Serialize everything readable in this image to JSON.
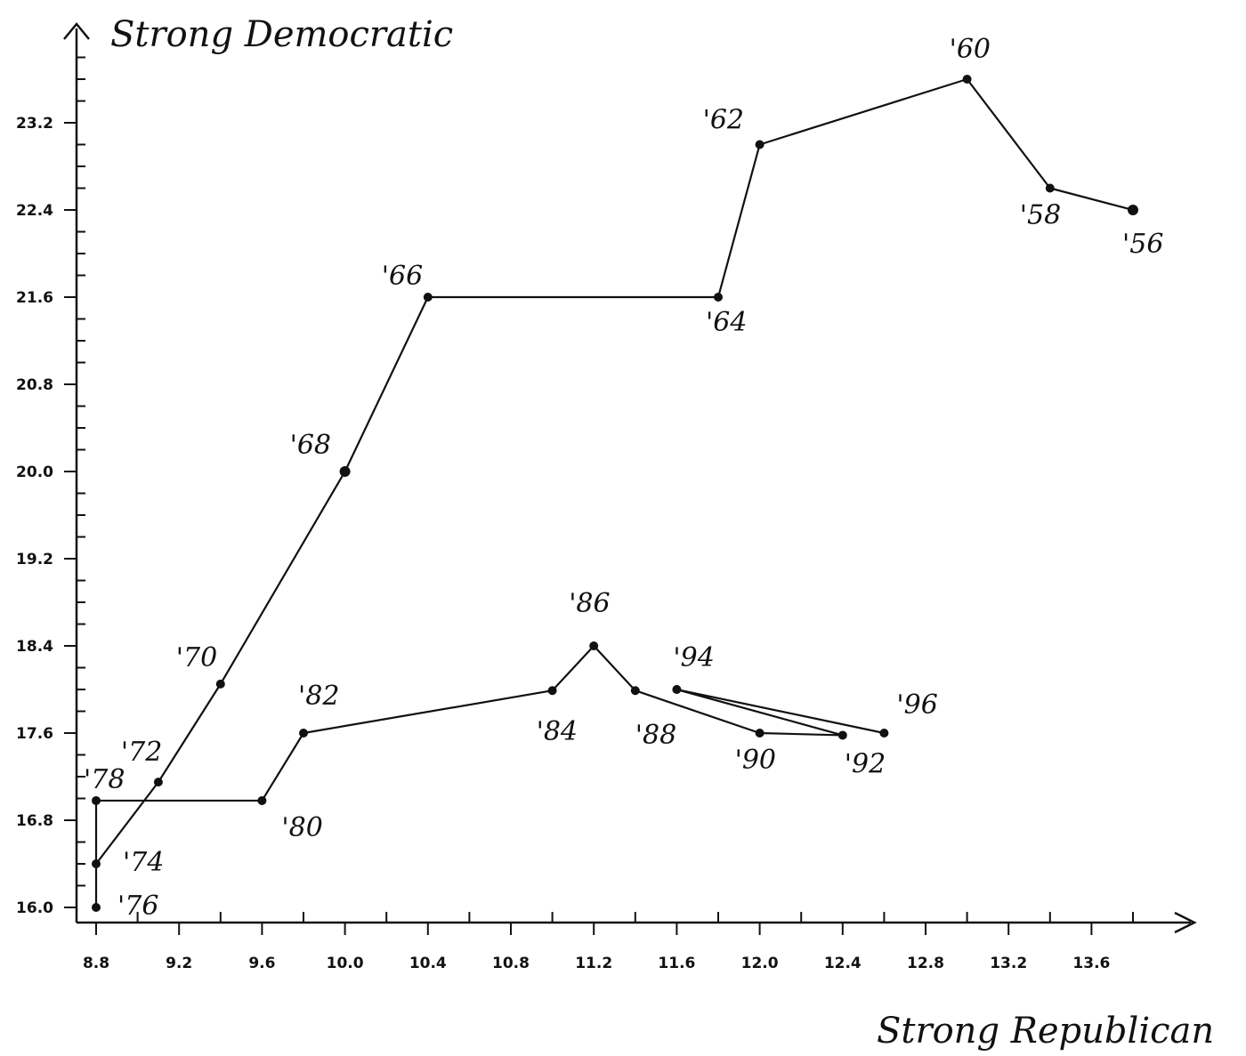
{
  "chart_data": {
    "type": "line",
    "title": "",
    "ylabel": "Strong Democratic",
    "xlabel": "Strong Republican",
    "xlim": [
      8.7,
      14.1
    ],
    "ylim": [
      15.9,
      24.0
    ],
    "x_ticks": [
      8.8,
      9.2,
      9.6,
      10.0,
      10.4,
      10.8,
      11.2,
      11.6,
      12.0,
      12.4,
      12.8,
      13.2,
      13.6
    ],
    "x_tick_labels": [
      "8.8",
      "9.2",
      "9.6",
      "10.0",
      "10.4",
      "10.8",
      "11.2",
      "11.6",
      "12.0",
      "12.4",
      "12.8",
      "13.2",
      "13.6"
    ],
    "y_ticks": [
      16.0,
      16.8,
      17.6,
      18.4,
      19.2,
      20.0,
      20.8,
      21.6,
      22.4,
      23.2
    ],
    "y_tick_labels": [
      "16.0",
      "16.8",
      "17.6",
      "18.4",
      "19.2",
      "20.0",
      "20.8",
      "21.6",
      "22.4",
      "23.2"
    ],
    "grid": false,
    "series": [
      {
        "points": [
          {
            "x": 13.8,
            "y": 22.4,
            "label": "'56"
          },
          {
            "x": 13.4,
            "y": 22.6,
            "label": "'58"
          },
          {
            "x": 13.0,
            "y": 23.6,
            "label": "'60"
          },
          {
            "x": 12.0,
            "y": 23.0,
            "label": "'62"
          },
          {
            "x": 11.8,
            "y": 21.6,
            "label": "'64"
          },
          {
            "x": 10.4,
            "y": 21.6,
            "label": "'66"
          },
          {
            "x": 10.0,
            "y": 20.0,
            "label": "'68"
          },
          {
            "x": 9.4,
            "y": 18.05,
            "label": "'70"
          },
          {
            "x": 9.1,
            "y": 17.15,
            "label": "'72"
          },
          {
            "x": 8.8,
            "y": 16.4,
            "label": "'74"
          },
          {
            "x": 8.8,
            "y": 16.0,
            "label": "'76"
          },
          {
            "x": 8.8,
            "y": 16.98,
            "label": "'78"
          },
          {
            "x": 9.6,
            "y": 16.98,
            "label": "'80"
          },
          {
            "x": 9.8,
            "y": 17.6,
            "label": "'82"
          },
          {
            "x": 11.0,
            "y": 17.99,
            "label": "'84"
          },
          {
            "x": 11.2,
            "y": 18.4,
            "label": "'86"
          },
          {
            "x": 11.4,
            "y": 17.99,
            "label": "'88"
          },
          {
            "x": 12.0,
            "y": 17.6,
            "label": "'90"
          },
          {
            "x": 12.4,
            "y": 17.58,
            "label": "'92"
          },
          {
            "x": 11.6,
            "y": 18.0,
            "label": "'94"
          },
          {
            "x": 12.6,
            "y": 17.6,
            "label": "'96"
          }
        ]
      }
    ]
  }
}
